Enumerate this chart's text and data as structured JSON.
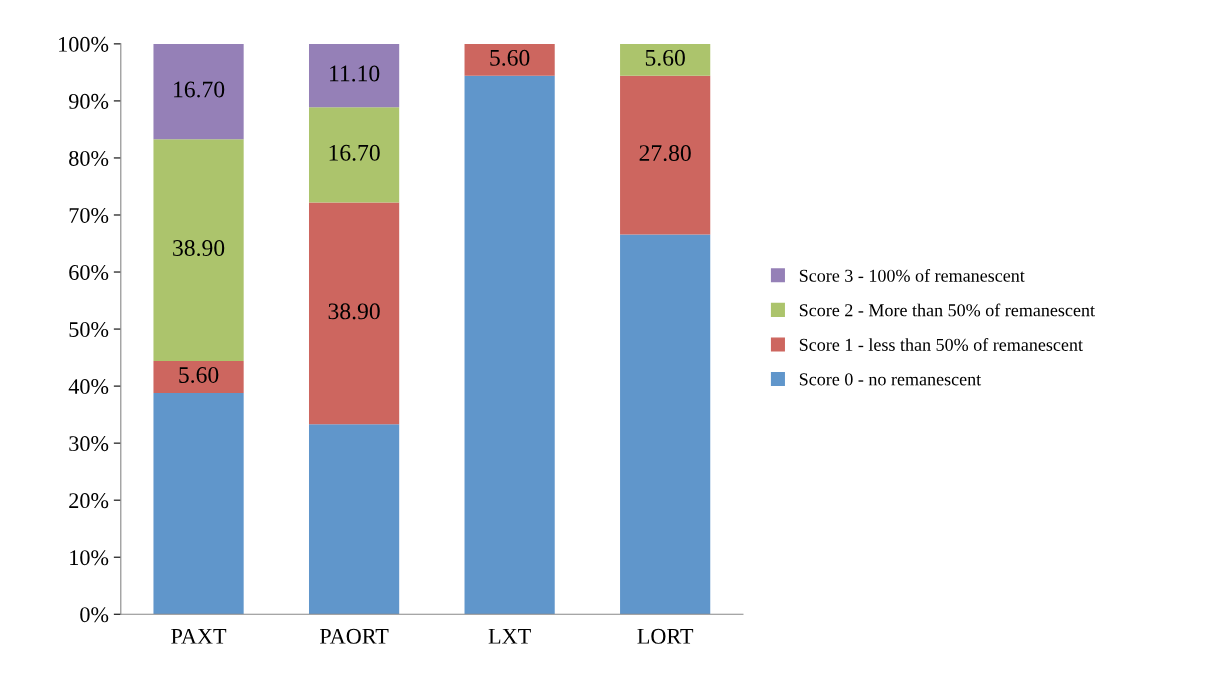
{
  "chart_data": {
    "type": "bar",
    "stacked": true,
    "categories": [
      "PAXT",
      "PAORT",
      "LXT",
      "LORT"
    ],
    "series": [
      {
        "name": "Score 0 - no remanescent",
        "color": "#6096cb",
        "values": [
          38.8,
          33.3,
          94.4,
          66.6
        ]
      },
      {
        "name": "Score 1 - less than 50% of remanescent",
        "color": "#cd665f",
        "values": [
          5.6,
          38.9,
          5.6,
          27.8
        ],
        "value_labels": [
          "5.60",
          "38.90",
          "5.60",
          "27.80"
        ]
      },
      {
        "name": "Score 2 - More than 50% of remanescent",
        "color": "#acc46c",
        "values": [
          38.9,
          16.7,
          null,
          5.6
        ],
        "value_labels": [
          "38.90",
          "16.70",
          null,
          "5.60"
        ]
      },
      {
        "name": "Score 3 - 100% of remanescent",
        "color": "#9580b7",
        "values": [
          16.7,
          11.1,
          null,
          null
        ],
        "value_labels": [
          "16.70",
          "11.10",
          null,
          null
        ]
      }
    ],
    "ylim": [
      0,
      100
    ],
    "yticks": [
      {
        "value": 0,
        "label": "0%"
      },
      {
        "value": 10,
        "label": "10%"
      },
      {
        "value": 20,
        "label": "20%"
      },
      {
        "value": 30,
        "label": "30%"
      },
      {
        "value": 40,
        "label": "40%"
      },
      {
        "value": 50,
        "label": "50%"
      },
      {
        "value": 60,
        "label": "60%"
      },
      {
        "value": 70,
        "label": "70%"
      },
      {
        "value": 80,
        "label": "80%"
      },
      {
        "value": 90,
        "label": "90%"
      },
      {
        "value": 100,
        "label": "100%"
      }
    ],
    "legend": "right",
    "grid": false
  }
}
